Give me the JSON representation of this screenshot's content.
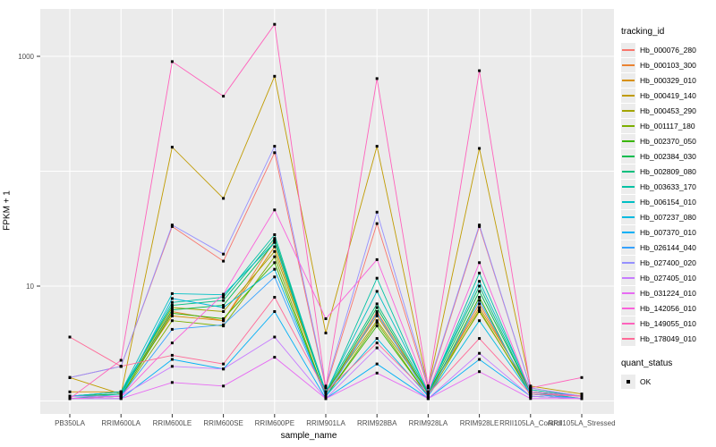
{
  "chart_data": {
    "type": "line",
    "title": "",
    "xlabel": "sample_name",
    "ylabel": "FPKM + 1",
    "y_scale": "log10",
    "ylim": [
      1,
      2000
    ],
    "y_ticks": [
      {
        "label": "1000",
        "value": 1000
      },
      {
        "label": "10",
        "value": 10
      }
    ],
    "gridlines": {
      "horizontal_at": [
        1,
        10,
        100,
        1000
      ],
      "vertical": "every category",
      "color": "#ffffff"
    },
    "panel_background": "#ebebeb",
    "point_marker": {
      "shape": "square",
      "color": "#000000"
    },
    "legend_position": "right",
    "categories": [
      "PB350LA",
      "RRIM600LA",
      "RRIM600LE",
      "RRIM600SE",
      "RRIM600PE",
      "RRIM901LA",
      "RRIM928BA",
      "RRIM928LA",
      "RRIM928LE",
      "RRII105LA_Control",
      "RRII105LA_Stressed"
    ],
    "series": [
      {
        "name": "Hb_000076_280",
        "color": "#F8766D",
        "values": [
          1.6,
          2.0,
          33,
          16.5,
          145,
          1.3,
          35,
          1.3,
          33,
          1.3,
          1.1
        ]
      },
      {
        "name": "Hb_000103_300",
        "color": "#EA8331",
        "values": [
          1.1,
          1.15,
          6.0,
          5.0,
          25,
          1.15,
          6.0,
          1.15,
          7.0,
          1.2,
          1.05
        ]
      },
      {
        "name": "Hb_000329_010",
        "color": "#D89000",
        "values": [
          1.2,
          1.2,
          5.5,
          5.0,
          22,
          1.2,
          5.5,
          1.2,
          6.5,
          1.25,
          1.1
        ]
      },
      {
        "name": "Hb_000419_140",
        "color": "#C09B00",
        "values": [
          1.6,
          1.15,
          162,
          58,
          670,
          3.9,
          165,
          1.3,
          158,
          1.35,
          1.15
        ]
      },
      {
        "name": "Hb_000453_290",
        "color": "#A3A500",
        "values": [
          1.1,
          1.2,
          6.5,
          6.0,
          20,
          1.2,
          5.0,
          1.2,
          6.0,
          1.2,
          1.1
        ]
      },
      {
        "name": "Hb_001117_180",
        "color": "#7CAE00",
        "values": [
          1.05,
          1.1,
          5.0,
          4.5,
          18,
          1.1,
          4.8,
          1.1,
          6.2,
          1.15,
          1.05
        ]
      },
      {
        "name": "Hb_002370_050",
        "color": "#39B600",
        "values": [
          1.05,
          1.1,
          5.8,
          5.2,
          16,
          1.1,
          4.5,
          1.1,
          8.0,
          1.1,
          1.05
        ]
      },
      {
        "name": "Hb_002384_030",
        "color": "#00BB4E",
        "values": [
          1.1,
          1.15,
          6.2,
          6.8,
          24,
          1.15,
          6.5,
          1.15,
          9.0,
          1.2,
          1.1
        ]
      },
      {
        "name": "Hb_002809_080",
        "color": "#00BF7D",
        "values": [
          1.1,
          1.2,
          6.8,
          7.5,
          26,
          1.2,
          7.0,
          1.2,
          10,
          1.2,
          1.1
        ]
      },
      {
        "name": "Hb_003633_170",
        "color": "#00C1A3",
        "values": [
          1.05,
          1.15,
          7.2,
          8.0,
          28,
          1.15,
          11.7,
          1.15,
          13,
          1.2,
          1.05
        ]
      },
      {
        "name": "Hb_006154_010",
        "color": "#00BFC4",
        "values": [
          1.1,
          1.2,
          8.6,
          8.4,
          24,
          1.2,
          9.0,
          1.2,
          11,
          1.25,
          1.1
        ]
      },
      {
        "name": "Hb_007237_080",
        "color": "#00BAE0",
        "values": [
          1.05,
          1.1,
          7.8,
          6.5,
          14,
          1.1,
          3.5,
          1.1,
          5.0,
          1.15,
          1.05
        ]
      },
      {
        "name": "Hb_007370_010",
        "color": "#00B0F6",
        "values": [
          1.05,
          1.05,
          2.3,
          1.9,
          6.0,
          1.05,
          2.1,
          1.05,
          2.3,
          1.1,
          1.05
        ]
      },
      {
        "name": "Hb_026144_040",
        "color": "#35A2FF",
        "values": [
          1.1,
          1.1,
          4.2,
          4.6,
          12,
          1.1,
          5.8,
          1.1,
          7.5,
          1.15,
          1.05
        ]
      },
      {
        "name": "Hb_027400_020",
        "color": "#9590FF",
        "values": [
          1.6,
          2.0,
          34,
          19,
          165,
          1.35,
          44,
          1.35,
          34,
          1.3,
          1.1
        ]
      },
      {
        "name": "Hb_027405_010",
        "color": "#C77CFF",
        "values": [
          1.1,
          1.1,
          2.0,
          1.9,
          3.6,
          1.05,
          2.9,
          1.05,
          2.6,
          1.1,
          1.05
        ]
      },
      {
        "name": "Hb_031224_010",
        "color": "#E76BF3",
        "values": [
          1.05,
          1.05,
          1.45,
          1.35,
          2.4,
          1.05,
          1.75,
          1.05,
          1.8,
          1.05,
          1.05
        ]
      },
      {
        "name": "Hb_142056_010",
        "color": "#FA62DB",
        "values": [
          1.05,
          1.1,
          3.2,
          8.5,
          46,
          5.2,
          17,
          1.2,
          16,
          1.2,
          1.1
        ]
      },
      {
        "name": "Hb_149055_010",
        "color": "#FF62BC",
        "values": [
          1.05,
          2.26,
          900,
          450,
          1900,
          1.3,
          640,
          1.35,
          750,
          1.3,
          1.6
        ]
      },
      {
        "name": "Hb_178049_010",
        "color": "#FF6A98",
        "values": [
          3.6,
          2.0,
          2.5,
          2.1,
          8.0,
          1.2,
          3.2,
          1.15,
          3.5,
          1.15,
          1.1
        ]
      }
    ]
  },
  "legend": {
    "tracking_title": "tracking_id",
    "quant_title": "quant_status",
    "quant_items": [
      {
        "label": "OK",
        "marker": "black-square"
      }
    ]
  },
  "axes": {
    "x_title": "sample_name",
    "y_title": "FPKM + 1"
  }
}
